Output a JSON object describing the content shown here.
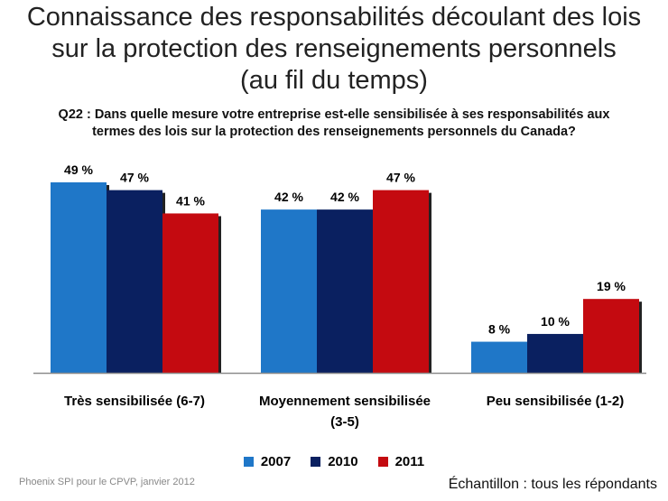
{
  "header": {
    "title_lines": [
      "Connaissance des responsabilités découlant des lois",
      "sur la protection des renseignements personnels",
      "(au fil du temps)"
    ],
    "question_lines": [
      "Q22 : Dans quelle mesure votre entreprise est-elle sensibilisée à ses responsabilités aux",
      "termes des lois sur la protection des renseignements personnels du Canada?"
    ]
  },
  "chart_data": {
    "type": "bar",
    "categories": [
      "Très sensibilisée (6-7)",
      "Moyennement sensibilisée (3-5)",
      "Peu sensibilisée (1-2)"
    ],
    "category_label_lines": [
      [
        "Très sensibilisée (6-7)"
      ],
      [
        "Moyennement sensibilisée",
        "(3-5)"
      ],
      [
        "Peu sensibilisée (1-2)"
      ]
    ],
    "series": [
      {
        "name": "2007",
        "values": [
          49,
          42,
          8
        ],
        "labels": [
          "49 %",
          "42 %",
          "8 %"
        ],
        "color": "#1f77c8"
      },
      {
        "name": "2010",
        "values": [
          47,
          42,
          10
        ],
        "labels": [
          "47 %",
          "42 %",
          "10 %"
        ],
        "color": "#0a2060"
      },
      {
        "name": "2011",
        "values": [
          41,
          47,
          19
        ],
        "labels": [
          "41 %",
          "47 %",
          "19 %"
        ],
        "color": "#c40a10"
      }
    ],
    "ylim": [
      0,
      49
    ],
    "grid": false,
    "legend_position": "bottom"
  },
  "footer": {
    "source": "Phoenix SPI pour le CPVP, janvier 2012",
    "sample": "Échantillon : tous les répondants"
  }
}
